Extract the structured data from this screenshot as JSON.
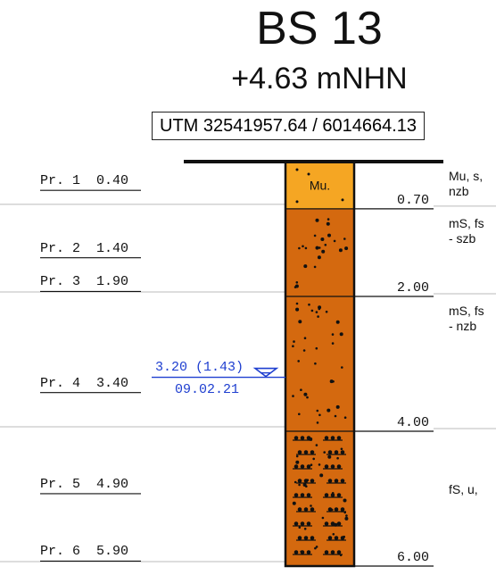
{
  "header": {
    "title": "BS 13",
    "elevation": "+4.63 mNHN",
    "utm": "UTM 32541957.64 / 6014664.13"
  },
  "samples": [
    {
      "id": "Pr. 1",
      "depth": "0.40"
    },
    {
      "id": "Pr. 2",
      "depth": "1.40"
    },
    {
      "id": "Pr. 3",
      "depth": "1.90"
    },
    {
      "id": "Pr. 4",
      "depth": "3.40"
    },
    {
      "id": "Pr. 5",
      "depth": "4.90"
    },
    {
      "id": "Pr. 6",
      "depth": "5.90"
    }
  ],
  "layers": [
    {
      "top": 0.0,
      "bottom": 0.7,
      "bottom_label": "0.70",
      "inner_label": "Mu.",
      "color": "#f5a623",
      "pattern": "fill",
      "description": "Mu, s,\nnzb"
    },
    {
      "top": 0.7,
      "bottom": 2.0,
      "bottom_label": "2.00",
      "inner_label": "",
      "color": "#d4690f",
      "pattern": "sand-dots",
      "description": "mS, fs\n- szb"
    },
    {
      "top": 2.0,
      "bottom": 4.0,
      "bottom_label": "4.00",
      "inner_label": "",
      "color": "#d4690f",
      "pattern": "sand-dots",
      "description": "mS, fs\n- nzb"
    },
    {
      "top": 4.0,
      "bottom": 6.0,
      "bottom_label": "6.00",
      "inner_label": "",
      "color": "#d4690f",
      "pattern": "fine-sand-silt",
      "description": "fS, u,"
    }
  ],
  "groundwater": {
    "label": "3.20 (1.43)",
    "date": "09.02.21",
    "color": "#1f3fd0"
  }
}
